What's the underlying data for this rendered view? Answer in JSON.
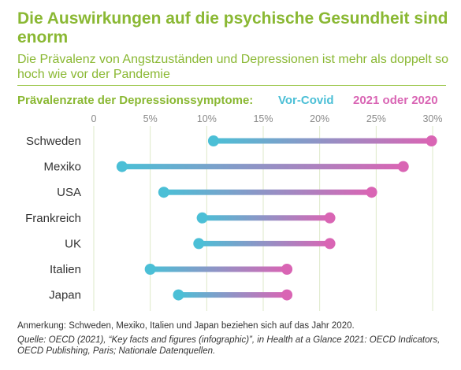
{
  "title": "Die Auswirkungen auf die psychische Gesundheit sind enorm",
  "subtitle": "Die Prävalenz von Angstzuständen und Depressionen ist mehr als doppelt so hoch wie vor der Pandemie",
  "legend": {
    "title": "Prävalenzrate der Depressionssymptome:",
    "pre_label": "Vor-Covid",
    "post_label": "2021 oder 2020"
  },
  "colors": {
    "title": "#8ab833",
    "pre": "#4bbfd6",
    "post": "#d965b4",
    "grid": "#dde9c8"
  },
  "chart_data": {
    "type": "dumbbell",
    "x_ticks": [
      "0",
      "5%",
      "10%",
      "15%",
      "20%",
      "25%",
      "30%"
    ],
    "xlim": [
      0,
      30
    ],
    "unit": "%",
    "grid": true,
    "categories": [
      "Schweden",
      "Mexiko",
      "USA",
      "Frankreich",
      "UK",
      "Italien",
      "Japan"
    ],
    "series": [
      {
        "name": "Vor-Covid",
        "values": [
          10.6,
          2.5,
          6.2,
          9.6,
          9.3,
          5.0,
          7.5
        ]
      },
      {
        "name": "2021 oder 2020",
        "values": [
          29.9,
          27.4,
          24.6,
          20.9,
          20.9,
          17.1,
          17.1
        ]
      }
    ]
  },
  "footnote": "Anmerkung: Schweden, Mexiko, Italien und Japan beziehen sich auf das Jahr 2020.",
  "source": "Quelle: OECD (2021), “Key facts and figures (infographic)”, in Health at a Glance 2021: OECD Indicators, OECD Publishing, Paris; Nationale Datenquellen."
}
